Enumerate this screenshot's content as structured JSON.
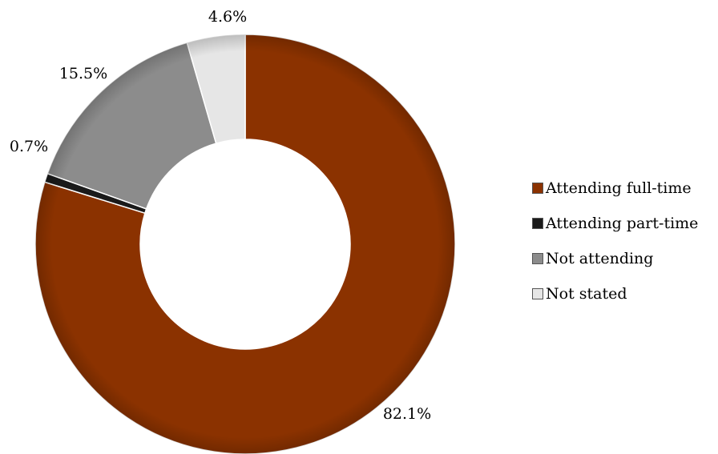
{
  "chart_data": {
    "type": "pie",
    "variant": "doughnut",
    "title": "",
    "categories": [
      "Attending full-time",
      "Attending part-time",
      "Not attending",
      "Not stated"
    ],
    "values": [
      82.1,
      0.7,
      15.5,
      4.6
    ],
    "labels": [
      "82.1%",
      "0.7%",
      "15.5%",
      "4.6%"
    ],
    "colors": [
      "#8B3200",
      "#1A1A1A",
      "#8C8C8C",
      "#E6E6E6"
    ],
    "unit": "%",
    "legend": "right"
  }
}
